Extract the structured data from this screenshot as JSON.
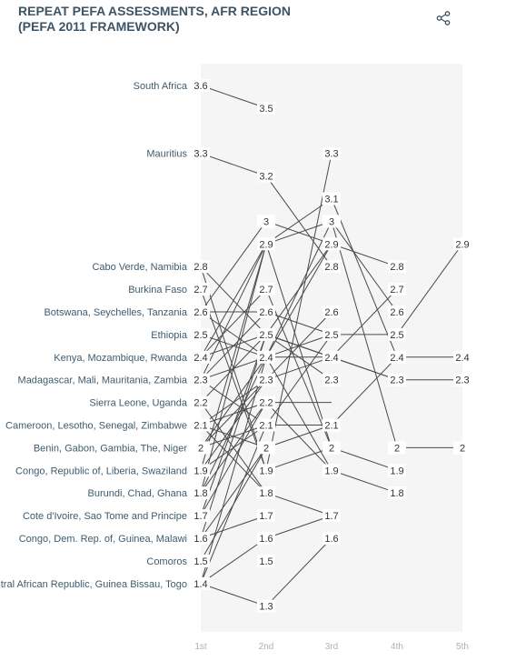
{
  "header": {
    "title_line1": "REPEAT PEFA ASSESSMENTS, AFR REGION",
    "title_line2": "(PEFA 2011 FRAMEWORK)",
    "share_icon": "share-icon"
  },
  "chart_data": {
    "type": "line",
    "title": "REPEAT PEFA ASSESSMENTS, AFR REGION (PEFA 2011 FRAMEWORK)",
    "x": [
      "1st",
      "2nd",
      "3rd",
      "4th",
      "5th"
    ],
    "ylim": [
      1.3,
      3.6
    ],
    "grid": false,
    "background_band": "#f5f5f5",
    "line_color": "#4a4a4a",
    "y_labels": [
      {
        "value": 3.6,
        "label": "South Africa"
      },
      {
        "value": 3.3,
        "label": "Mauritius"
      },
      {
        "value": 2.8,
        "label": "Cabo Verde, Namibia"
      },
      {
        "value": 2.7,
        "label": "Burkina Faso"
      },
      {
        "value": 2.6,
        "label": "Botswana, Seychelles, Tanzania"
      },
      {
        "value": 2.5,
        "label": "Ethiopia"
      },
      {
        "value": 2.4,
        "label": "Kenya, Mozambique, Rwanda"
      },
      {
        "value": 2.3,
        "label": "Madagascar, Mali, Mauritania, Zambia"
      },
      {
        "value": 2.2,
        "label": "Sierra Leone, Uganda"
      },
      {
        "value": 2.1,
        "label": "Cameroon, Lesotho, Senegal, Zimbabwe"
      },
      {
        "value": 2.0,
        "label": "Benin, Gabon, Gambia, The, Niger"
      },
      {
        "value": 1.9,
        "label": "Congo, Republic of, Liberia, Swaziland"
      },
      {
        "value": 1.8,
        "label": "Burundi, Chad, Ghana"
      },
      {
        "value": 1.7,
        "label": "Cote d'Ivoire, Sao Tome and Principe"
      },
      {
        "value": 1.6,
        "label": "Congo, Dem. Rep. of, Guinea, Malawi"
      },
      {
        "value": 1.5,
        "label": "Comoros"
      },
      {
        "value": 1.4,
        "label": "Central African Republic, Guinea Bissau, Togo"
      }
    ],
    "value_labels": [
      {
        "col": 0,
        "values": [
          "3.6",
          "3.3",
          "2.8",
          "2.7",
          "2.6",
          "2.5",
          "2.4",
          "2.3",
          "2.2",
          "2.1",
          "2",
          "1.9",
          "1.8",
          "1.7",
          "1.6",
          "1.5",
          "1.4"
        ]
      },
      {
        "col": 1,
        "values": [
          "3.5",
          "3.2",
          "3",
          "2.9",
          "2.7",
          "2.6",
          "2.5",
          "2.4",
          "2.3",
          "2.2",
          "2.1",
          "2",
          "1.9",
          "1.8",
          "1.7",
          "1.6",
          "1.5",
          "1.3"
        ]
      },
      {
        "col": 2,
        "values": [
          "3.3",
          "3.1",
          "3",
          "2.9",
          "2.8",
          "2.6",
          "2.5",
          "2.4",
          "2.3",
          "2.1",
          "2",
          "1.9",
          "1.7",
          "1.6"
        ]
      },
      {
        "col": 3,
        "values": [
          "2.8",
          "2.7",
          "2.6",
          "2.5",
          "2.4",
          "2.3",
          "2",
          "1.9",
          "1.8"
        ]
      },
      {
        "col": 4,
        "values": [
          "2.9",
          "2.4",
          "2.3",
          "2"
        ]
      }
    ],
    "series": [
      {
        "values": [
          3.6,
          3.5,
          null,
          null,
          null
        ]
      },
      {
        "values": [
          3.3,
          3.2,
          2.8,
          null,
          null
        ]
      },
      {
        "values": [
          2.8,
          2.5,
          2.4,
          2.3,
          null
        ]
      },
      {
        "values": [
          2.8,
          1.9,
          3.3,
          null,
          null
        ]
      },
      {
        "values": [
          2.7,
          1.9,
          2.0,
          null,
          null
        ]
      },
      {
        "values": [
          2.6,
          2.6,
          2.5,
          null,
          null
        ]
      },
      {
        "values": [
          2.6,
          3.0,
          2.9,
          2.8,
          null
        ]
      },
      {
        "values": [
          2.6,
          2.4,
          2.9,
          null,
          null
        ]
      },
      {
        "values": [
          2.5,
          2.4,
          1.9,
          1.8,
          null
        ]
      },
      {
        "values": [
          2.4,
          2.9,
          3.0,
          2.0,
          2.0
        ]
      },
      {
        "values": [
          2.4,
          2.7,
          2.0,
          null,
          null
        ]
      },
      {
        "values": [
          2.4,
          2.5,
          2.3,
          null,
          null
        ]
      },
      {
        "values": [
          2.3,
          2.4,
          2.4,
          2.3,
          2.3
        ]
      },
      {
        "values": [
          2.3,
          2.9,
          3.1,
          2.4,
          null
        ]
      },
      {
        "values": [
          2.3,
          2.1,
          2.1,
          2.4,
          2.4
        ]
      },
      {
        "values": [
          2.3,
          2.6,
          null,
          null,
          null
        ]
      },
      {
        "values": [
          2.2,
          2.5,
          2.4,
          2.7,
          null
        ]
      },
      {
        "values": [
          2.2,
          1.8,
          1.7,
          null,
          null
        ]
      },
      {
        "values": [
          2.1,
          2.3,
          2.4,
          null,
          null
        ]
      },
      {
        "values": [
          2.1,
          2.0,
          2.1,
          null,
          null
        ]
      },
      {
        "values": [
          2.1,
          2.2,
          1.9,
          null,
          null
        ]
      },
      {
        "values": [
          2.1,
          1.8,
          null,
          null,
          null
        ]
      },
      {
        "values": [
          2.0,
          2.4,
          3.0,
          2.6,
          null
        ]
      },
      {
        "values": [
          2.0,
          2.3,
          2.6,
          null,
          null
        ]
      },
      {
        "values": [
          2.0,
          2.1,
          2.5,
          null,
          null
        ]
      },
      {
        "values": [
          1.9,
          2.1,
          null,
          null,
          null
        ]
      },
      {
        "values": [
          1.9,
          2.9,
          null,
          null,
          null
        ]
      },
      {
        "values": [
          1.9,
          2.3,
          null,
          null,
          null
        ]
      },
      {
        "values": [
          1.8,
          2.9,
          2.0,
          1.9,
          null
        ]
      },
      {
        "values": [
          1.8,
          2.4,
          2.5,
          2.5,
          2.9
        ]
      },
      {
        "values": [
          1.8,
          2.2,
          null,
          null,
          null
        ]
      },
      {
        "values": [
          1.7,
          2.5,
          2.9,
          null,
          null
        ]
      },
      {
        "values": [
          1.7,
          2.2,
          2.2,
          null,
          null
        ]
      },
      {
        "values": [
          1.6,
          2.5,
          2.4,
          null,
          null
        ]
      },
      {
        "values": [
          1.6,
          1.7,
          null,
          null,
          null
        ]
      },
      {
        "values": [
          1.6,
          2.0,
          null,
          null,
          null
        ]
      },
      {
        "values": [
          1.5,
          2.0,
          null,
          null,
          null
        ]
      },
      {
        "values": [
          1.4,
          2.4,
          null,
          null,
          null
        ]
      },
      {
        "values": [
          1.4,
          1.6,
          1.7,
          null,
          null
        ]
      },
      {
        "values": [
          1.4,
          1.3,
          1.6,
          null,
          null
        ]
      },
      {
        "values": [
          1.4,
          2.1,
          null,
          null,
          null
        ]
      }
    ]
  }
}
